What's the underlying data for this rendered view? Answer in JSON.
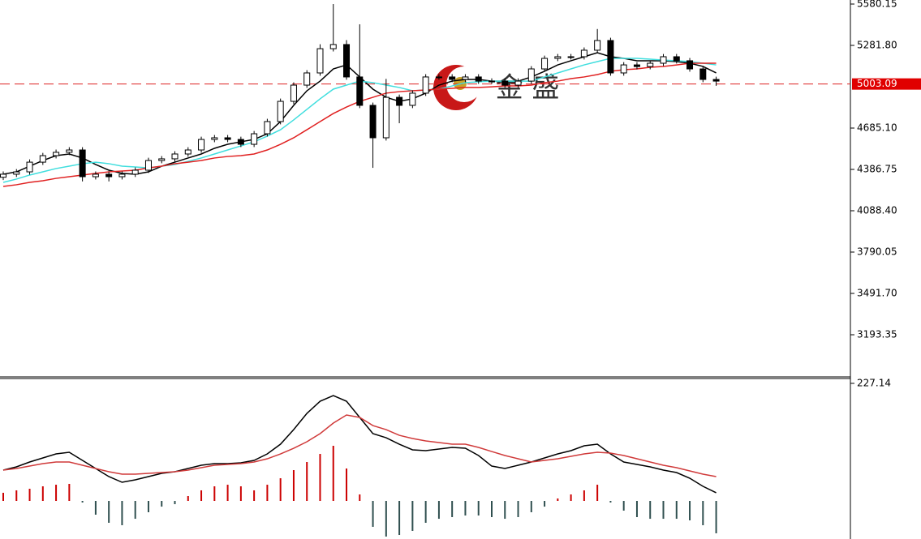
{
  "chart_data": [
    {
      "type": "candlestick",
      "open": [
        4330,
        4352,
        4369,
        4439,
        4486,
        4510,
        4527,
        4334,
        4352,
        4334,
        4352,
        4381,
        4451,
        4463,
        4498,
        4527,
        4603,
        4615,
        4603,
        4568,
        4644,
        4732,
        4878,
        4995,
        5083,
        5258,
        5288,
        5054,
        4849,
        4615,
        4907,
        4849,
        4937,
        5054,
        5054,
        5036,
        5054,
        5024,
        5024,
        4995,
        5024,
        5112,
        5188,
        5200,
        5200,
        5247,
        5317,
        5083,
        5141,
        5129,
        5153,
        5200,
        5171,
        5112,
        5036
      ],
      "high": [
        4372,
        4389,
        4459,
        4506,
        4530,
        4547,
        4547,
        4372,
        4372,
        4372,
        4401,
        4471,
        4483,
        4518,
        4547,
        4623,
        4635,
        4635,
        4623,
        4664,
        4752,
        4898,
        5015,
        5103,
        5290,
        5580,
        5320,
        5434,
        4869,
        5040,
        4927,
        4957,
        5074,
        5074,
        5074,
        5074,
        5074,
        5044,
        5044,
        5044,
        5132,
        5208,
        5220,
        5220,
        5267,
        5400,
        5337,
        5161,
        5161,
        5173,
        5220,
        5220,
        5191,
        5132,
        5056
      ],
      "low": [
        4310,
        4332,
        4349,
        4419,
        4466,
        4490,
        4300,
        4314,
        4300,
        4314,
        4332,
        4361,
        4431,
        4443,
        4478,
        4507,
        4583,
        4583,
        4548,
        4548,
        4624,
        4712,
        4858,
        4975,
        5063,
        5238,
        5034,
        4829,
        4398,
        4595,
        4720,
        4829,
        4917,
        5034,
        5016,
        5016,
        5004,
        5004,
        4975,
        4975,
        5004,
        5092,
        5168,
        5180,
        5180,
        5227,
        5063,
        5063,
        5109,
        5109,
        5133,
        5151,
        5092,
        5016,
        4990
      ],
      "close": [
        4352,
        4369,
        4439,
        4486,
        4510,
        4527,
        4334,
        4352,
        4334,
        4352,
        4381,
        4451,
        4463,
        4498,
        4527,
        4603,
        4615,
        4603,
        4568,
        4644,
        4732,
        4878,
        4995,
        5083,
        5258,
        5288,
        5054,
        4849,
        4615,
        4907,
        4849,
        4937,
        5054,
        5054,
        5036,
        5054,
        5024,
        5024,
        4995,
        5024,
        5112,
        5188,
        5200,
        5200,
        5247,
        5317,
        5083,
        5141,
        5129,
        5153,
        5200,
        5171,
        5112,
        5036,
        5024
      ],
      "series": [
        {
          "color": "#000000",
          "values": [
            4352,
            4369,
            4410,
            4451,
            4486,
            4498,
            4469,
            4422,
            4381,
            4358,
            4352,
            4369,
            4410,
            4439,
            4469,
            4498,
            4539,
            4568,
            4586,
            4603,
            4644,
            4732,
            4849,
            4954,
            5024,
            5112,
            5141,
            5054,
            4966,
            4907,
            4878,
            4896,
            4937,
            4995,
            5024,
            5036,
            5036,
            5024,
            5024,
            5024,
            5054,
            5095,
            5141,
            5171,
            5200,
            5229,
            5200,
            5188,
            5171,
            5171,
            5171,
            5165,
            5153,
            5130,
            5083
          ]
        },
        {
          "color": "#40dede",
          "values": [
            4293,
            4317,
            4346,
            4369,
            4393,
            4410,
            4428,
            4439,
            4428,
            4410,
            4404,
            4398,
            4410,
            4422,
            4445,
            4469,
            4498,
            4527,
            4556,
            4586,
            4627,
            4673,
            4744,
            4820,
            4896,
            4966,
            4995,
            5024,
            5013,
            4995,
            4978,
            4954,
            4960,
            4966,
            4989,
            5013,
            5019,
            5024,
            5024,
            5024,
            5024,
            5054,
            5083,
            5112,
            5141,
            5165,
            5188,
            5188,
            5188,
            5182,
            5176,
            5171,
            5165,
            5153,
            5141
          ]
        },
        {
          "color": "#e02020",
          "values": [
            4264,
            4276,
            4293,
            4305,
            4322,
            4334,
            4346,
            4358,
            4369,
            4375,
            4381,
            4398,
            4410,
            4428,
            4439,
            4451,
            4469,
            4480,
            4486,
            4498,
            4527,
            4568,
            4615,
            4673,
            4732,
            4790,
            4837,
            4878,
            4907,
            4937,
            4948,
            4954,
            4960,
            4966,
            4972,
            4978,
            4978,
            4983,
            4989,
            4989,
            4995,
            5013,
            5024,
            5042,
            5054,
            5071,
            5095,
            5106,
            5112,
            5124,
            5130,
            5141,
            5153,
            5153,
            5153
          ]
        }
      ],
      "ylim": [
        2889.15,
        5609.4
      ],
      "yticks": [
        5580.15,
        {
          "value": 5281.8,
          "label": "5281.80"
        },
        {
          "value": 4685.1,
          "label": "4685.10"
        },
        4386.75,
        {
          "value": 4088.4,
          "label": "4088.40"
        },
        3790.05,
        {
          "value": 3491.7,
          "label": "3491.70"
        },
        3193.35
      ],
      "current_price": 5003.09,
      "watermark": "金 盛"
    },
    {
      "type": "macd",
      "series": [
        {
          "color": "#000000",
          "values": [
            59.5,
            65.8,
            75.2,
            83.0,
            90.8,
            94.0,
            78.3,
            62.6,
            47.0,
            36.0,
            40.7,
            47.0,
            53.2,
            56.4,
            62.6,
            68.9,
            72.0,
            72.0,
            73.6,
            78.3,
            90.8,
            109.6,
            137.8,
            169.1,
            192.6,
            203.6,
            192.6,
            161.3,
            130.0,
            122.1,
            109.6,
            98.7,
            97.1,
            100.2,
            103.4,
            101.8,
            87.7,
            67.3,
            62.6,
            68.9,
            75.2,
            83.0,
            90.8,
            97.1,
            106.5,
            109.6,
            90.8,
            75.2,
            70.5,
            65.8,
            59.5,
            54.8,
            43.8,
            28.2,
            15.7
          ]
        },
        {
          "color": "#d03a3a",
          "values": [
            59.5,
            62.6,
            67.3,
            72.0,
            75.2,
            75.2,
            68.9,
            62.6,
            56.4,
            51.7,
            51.7,
            53.2,
            54.8,
            56.4,
            59.5,
            64.2,
            68.9,
            70.5,
            72.0,
            75.2,
            81.4,
            90.8,
            101.8,
            114.3,
            130.0,
            150.3,
            166.0,
            161.3,
            145.6,
            137.8,
            126.8,
            120.6,
            115.9,
            112.8,
            109.6,
            109.6,
            103.4,
            95.5,
            87.7,
            81.4,
            75.2,
            78.3,
            81.4,
            86.1,
            90.8,
            94.0,
            92.4,
            87.7,
            81.4,
            75.2,
            68.9,
            64.2,
            57.9,
            51.7,
            47.0
          ]
        }
      ],
      "histogram": [
        15.7,
        20.4,
        23.5,
        28.2,
        31.3,
        32.9,
        -3.1,
        -26.6,
        -42.3,
        -47.0,
        -34.5,
        -21.9,
        -11.0,
        -6.3,
        9.4,
        20.4,
        28.2,
        31.3,
        28.2,
        20.4,
        31.3,
        43.8,
        59.5,
        75.2,
        90.8,
        106.5,
        62.6,
        12.5,
        -50.1,
        -68.9,
        -65.8,
        -57.9,
        -42.3,
        -34.5,
        -31.3,
        -28.2,
        -28.2,
        -31.3,
        -34.5,
        -31.3,
        -21.9,
        -11.0,
        4.7,
        12.5,
        20.4,
        31.3,
        -3.1,
        -18.8,
        -31.3,
        -34.5,
        -34.5,
        -34.5,
        -37.6,
        -47.0,
        -62.6
      ],
      "positive_color": "#cc0000",
      "negative_color": "#2f4f4f",
      "ylim": [
        -73.6,
        236.5
      ],
      "yticks": [
        227.14
      ]
    }
  ]
}
